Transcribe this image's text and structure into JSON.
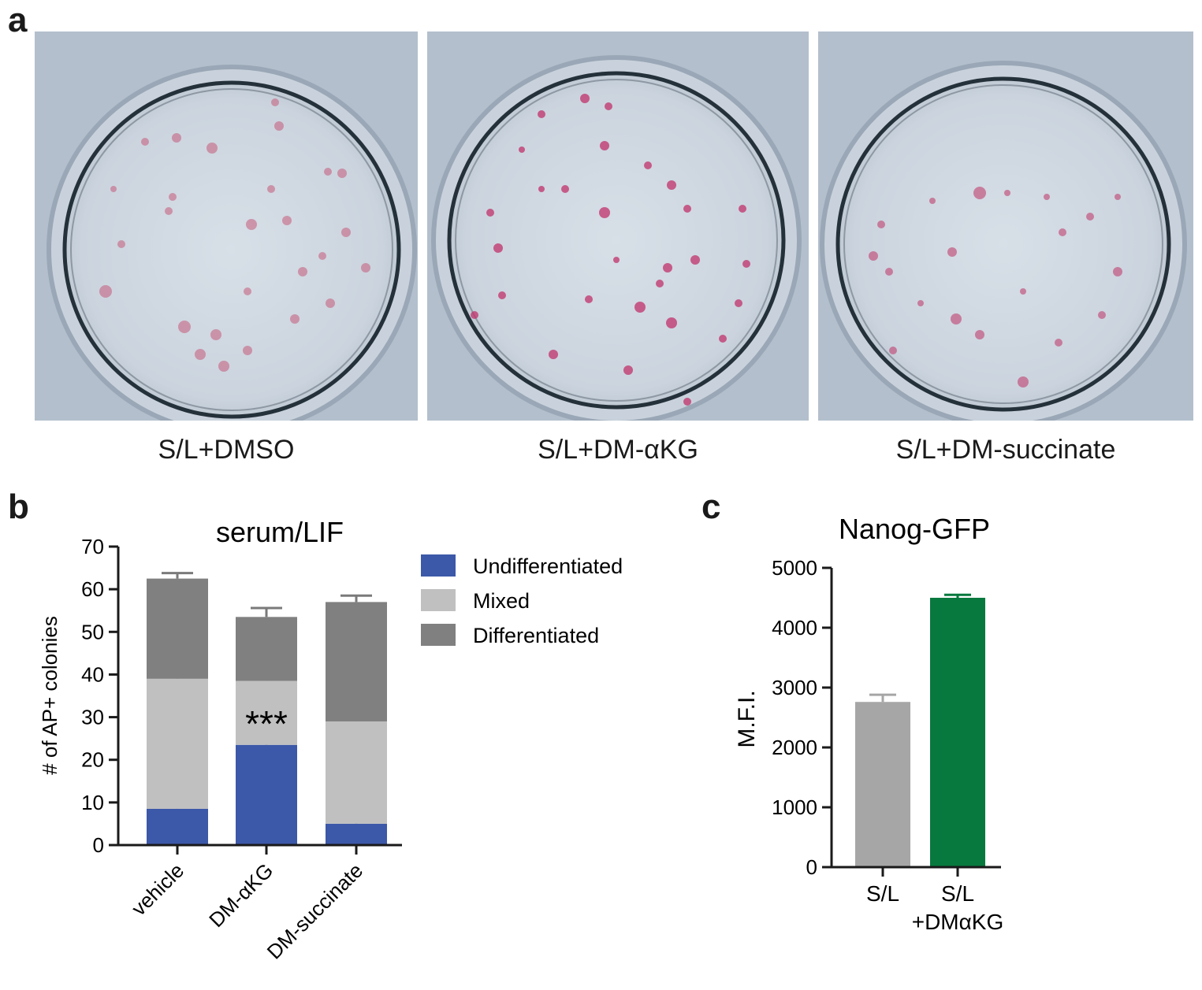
{
  "panels": {
    "a": "a",
    "b": "b",
    "c": "c"
  },
  "photos": [
    {
      "caption": "S/L+DMSO"
    },
    {
      "caption": "S/L+DM-αKG"
    },
    {
      "caption": "S/L+DM-succinate"
    }
  ],
  "chart_data": [
    {
      "type": "bar",
      "stacked": true,
      "title": "serum/LIF",
      "ylabel": "# of AP+ colonies",
      "xlabel": "",
      "ylim": [
        0,
        70
      ],
      "yticks": [
        0,
        10,
        20,
        30,
        40,
        50,
        60,
        70
      ],
      "categories": [
        "vehicle",
        "DM-αKG",
        "DM-succinate"
      ],
      "legend_position": "right",
      "series": [
        {
          "name": "Undifferentiated",
          "color": "#3c58a8",
          "values": [
            8.5,
            23.5,
            5.0
          ],
          "errors": [
            1.2,
            1.7,
            1.0
          ]
        },
        {
          "name": "Mixed",
          "color": "#c0c0c0",
          "values": [
            30.5,
            15.0,
            24.0
          ],
          "errors": [
            1.6,
            1.2,
            2.5
          ]
        },
        {
          "name": "Differentiated",
          "color": "#808080",
          "values": [
            23.5,
            15.0,
            28.0
          ],
          "errors": [
            1.3,
            2.1,
            1.5
          ]
        }
      ],
      "annotations": [
        {
          "category": "DM-αKG",
          "text": "***"
        }
      ]
    },
    {
      "type": "bar",
      "title": "Nanog-GFP",
      "ylabel": "M.F.I.",
      "xlabel": "",
      "ylim": [
        0,
        5000
      ],
      "yticks": [
        0,
        1000,
        2000,
        3000,
        4000,
        5000
      ],
      "categories": [
        [
          "S/L"
        ],
        [
          "S/L",
          "+DMαKG"
        ]
      ],
      "values": [
        2760,
        4500
      ],
      "errors": [
        120,
        50
      ],
      "colors": [
        "#a6a6a6",
        "#07793e"
      ]
    }
  ]
}
